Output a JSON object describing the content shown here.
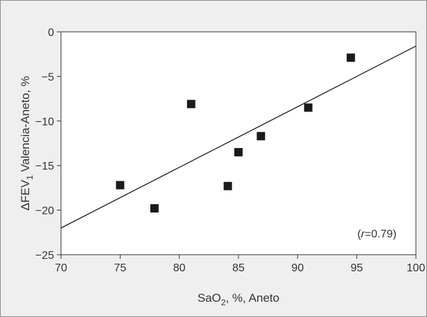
{
  "chart_data": {
    "type": "scatter",
    "xlabel": {
      "pre": "SaO",
      "sub": "2",
      "post": ", %, Aneto"
    },
    "ylabel": {
      "pre": "ΔFEV",
      "sub": "1",
      "post": " Valencia-Aneto, %"
    },
    "xlim": [
      70,
      100
    ],
    "ylim": [
      -25,
      0
    ],
    "xticks": [
      70,
      75,
      80,
      85,
      90,
      95,
      100
    ],
    "yticks": [
      0,
      -5,
      -10,
      -15,
      -20,
      -25
    ],
    "xtick_labels": [
      "70",
      "75",
      "80",
      "85",
      "90",
      "95",
      "100"
    ],
    "ytick_labels": [
      "0",
      "−5",
      "−10",
      "−15",
      "−20",
      "−25"
    ],
    "grid": false,
    "points": [
      {
        "x": 75.0,
        "y": -17.2
      },
      {
        "x": 77.9,
        "y": -19.8
      },
      {
        "x": 81.0,
        "y": -8.1
      },
      {
        "x": 84.1,
        "y": -17.3
      },
      {
        "x": 85.0,
        "y": -13.5
      },
      {
        "x": 86.9,
        "y": -11.7
      },
      {
        "x": 90.9,
        "y": -8.5
      },
      {
        "x": 94.5,
        "y": -2.9
      }
    ],
    "fit_line": {
      "x": [
        70,
        100
      ],
      "y": [
        -22.0,
        -1.6
      ]
    },
    "annotation": {
      "open": "(",
      "r": "r",
      "eq": "=0.79)"
    },
    "colors": {
      "marker": "#1a1a1a",
      "line": "#1a1a1a",
      "plot_bg": "#ffffff",
      "panel_bg": "#efefef"
    }
  }
}
